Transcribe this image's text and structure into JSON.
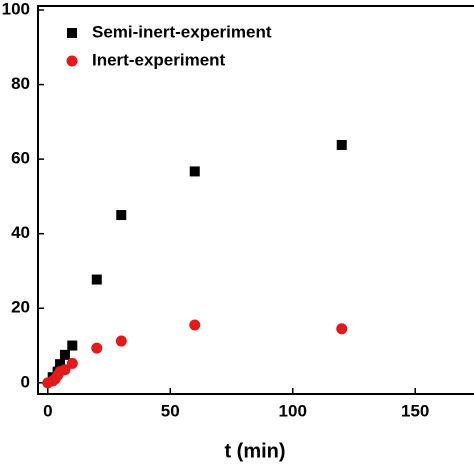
{
  "chart_data": {
    "type": "scatter",
    "x_label": "t (min)",
    "xlim": [
      -4,
      174
    ],
    "xticks": [
      0,
      50,
      100,
      150
    ],
    "ylim": [
      -3,
      100
    ],
    "yticks": [
      0,
      20,
      40,
      60,
      80,
      100
    ],
    "legend": "top-left",
    "series": [
      {
        "name": "Semi-inert-experiment",
        "color": "#000000",
        "marker": "square",
        "x": [
          2,
          4,
          5,
          7,
          10,
          20,
          30,
          60,
          120
        ],
        "values": [
          1.5,
          3,
          5,
          7.5,
          10,
          27.7,
          45,
          56.7,
          63.8
        ]
      },
      {
        "name": "Inert-experiment",
        "color": "#e31a1c",
        "marker": "circle",
        "x": [
          0,
          2,
          3,
          4,
          5,
          7,
          10,
          20,
          30,
          60,
          120
        ],
        "values": [
          0,
          0.5,
          1,
          2,
          3,
          3.5,
          5.2,
          9.3,
          11.2,
          15.5,
          14.5
        ]
      }
    ]
  }
}
